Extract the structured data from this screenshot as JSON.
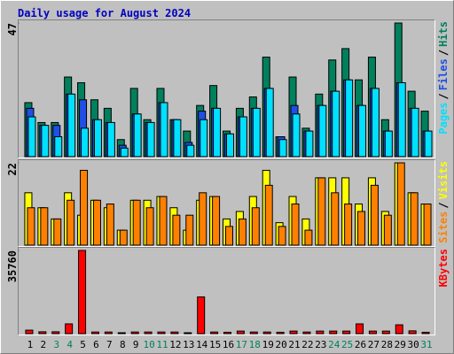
{
  "chart_data": [
    {
      "type": "bar",
      "title": "Daily usage for August 2024",
      "ylim": [
        0,
        47
      ],
      "yticks": [
        47
      ],
      "legend_separator": "/",
      "series": [
        {
          "name": "Hits",
          "color": "#00805c",
          "values": [
            19,
            12,
            12,
            28,
            26,
            20,
            17,
            6,
            24,
            13,
            24,
            13,
            9,
            18,
            25,
            9,
            17,
            21,
            35,
            7,
            28,
            10,
            22,
            34,
            38,
            27,
            35,
            13,
            47,
            23,
            16
          ]
        },
        {
          "name": "Files",
          "color": "#1f4fe6",
          "values": [
            17,
            11,
            11,
            22,
            20,
            13,
            12,
            4,
            15,
            12,
            19,
            13,
            5,
            16,
            17,
            8,
            14,
            17,
            24,
            7,
            18,
            9,
            18,
            23,
            27,
            18,
            24,
            9,
            26,
            17,
            9
          ]
        },
        {
          "name": "Pages",
          "color": "#00e0ff",
          "values": [
            14,
            11,
            7,
            22,
            10,
            13,
            12,
            3,
            15,
            12,
            19,
            13,
            4,
            13,
            17,
            8,
            14,
            17,
            24,
            6,
            15,
            9,
            18,
            23,
            27,
            18,
            24,
            9,
            26,
            17,
            9
          ]
        }
      ]
    },
    {
      "type": "bar",
      "ylim": [
        0,
        22
      ],
      "yticks": [
        22
      ],
      "legend_separator": "/",
      "series": [
        {
          "name": "Visits",
          "color": "#ffff00",
          "values": [
            14,
            10,
            7,
            14,
            8,
            12,
            10,
            4,
            12,
            12,
            13,
            10,
            4,
            12,
            13,
            7,
            9,
            13,
            20,
            6,
            13,
            7,
            18,
            18,
            18,
            11,
            18,
            9,
            22,
            14,
            11
          ]
        },
        {
          "name": "Sites",
          "color": "#ff8000",
          "values": [
            10,
            10,
            7,
            12,
            20,
            12,
            11,
            4,
            12,
            10,
            13,
            8,
            8,
            14,
            13,
            5,
            7,
            10,
            16,
            5,
            11,
            4,
            18,
            14,
            11,
            9,
            16,
            8,
            22,
            14,
            11
          ]
        }
      ]
    },
    {
      "type": "bar",
      "ylim": [
        0,
        35760
      ],
      "yticks": [
        35760
      ],
      "categories": [
        "1",
        "2",
        "3",
        "4",
        "5",
        "6",
        "7",
        "8",
        "9",
        "10",
        "11",
        "12",
        "13",
        "14",
        "15",
        "16",
        "17",
        "18",
        "19",
        "20",
        "21",
        "22",
        "23",
        "24",
        "25",
        "26",
        "27",
        "28",
        "29",
        "30",
        "31"
      ],
      "label_colors": [
        "#000",
        "#000",
        "#00805c",
        "#00805c",
        "#000",
        "#000",
        "#000",
        "#000",
        "#000",
        "#00805c",
        "#00805c",
        "#000",
        "#000",
        "#000",
        "#000",
        "#000",
        "#00805c",
        "#00805c",
        "#000",
        "#000",
        "#000",
        "#000",
        "#000",
        "#00805c",
        "#00805c",
        "#000",
        "#000",
        "#000",
        "#000",
        "#000",
        "#00805c"
      ],
      "series": [
        {
          "name": "KBytes",
          "color": "#ff0000",
          "values": [
            1500,
            800,
            800,
            4200,
            35760,
            700,
            700,
            400,
            700,
            700,
            700,
            700,
            400,
            15800,
            700,
            600,
            1100,
            700,
            700,
            600,
            1100,
            700,
            1100,
            1100,
            1100,
            4200,
            1100,
            1100,
            3800,
            1200,
            600
          ]
        }
      ]
    }
  ]
}
